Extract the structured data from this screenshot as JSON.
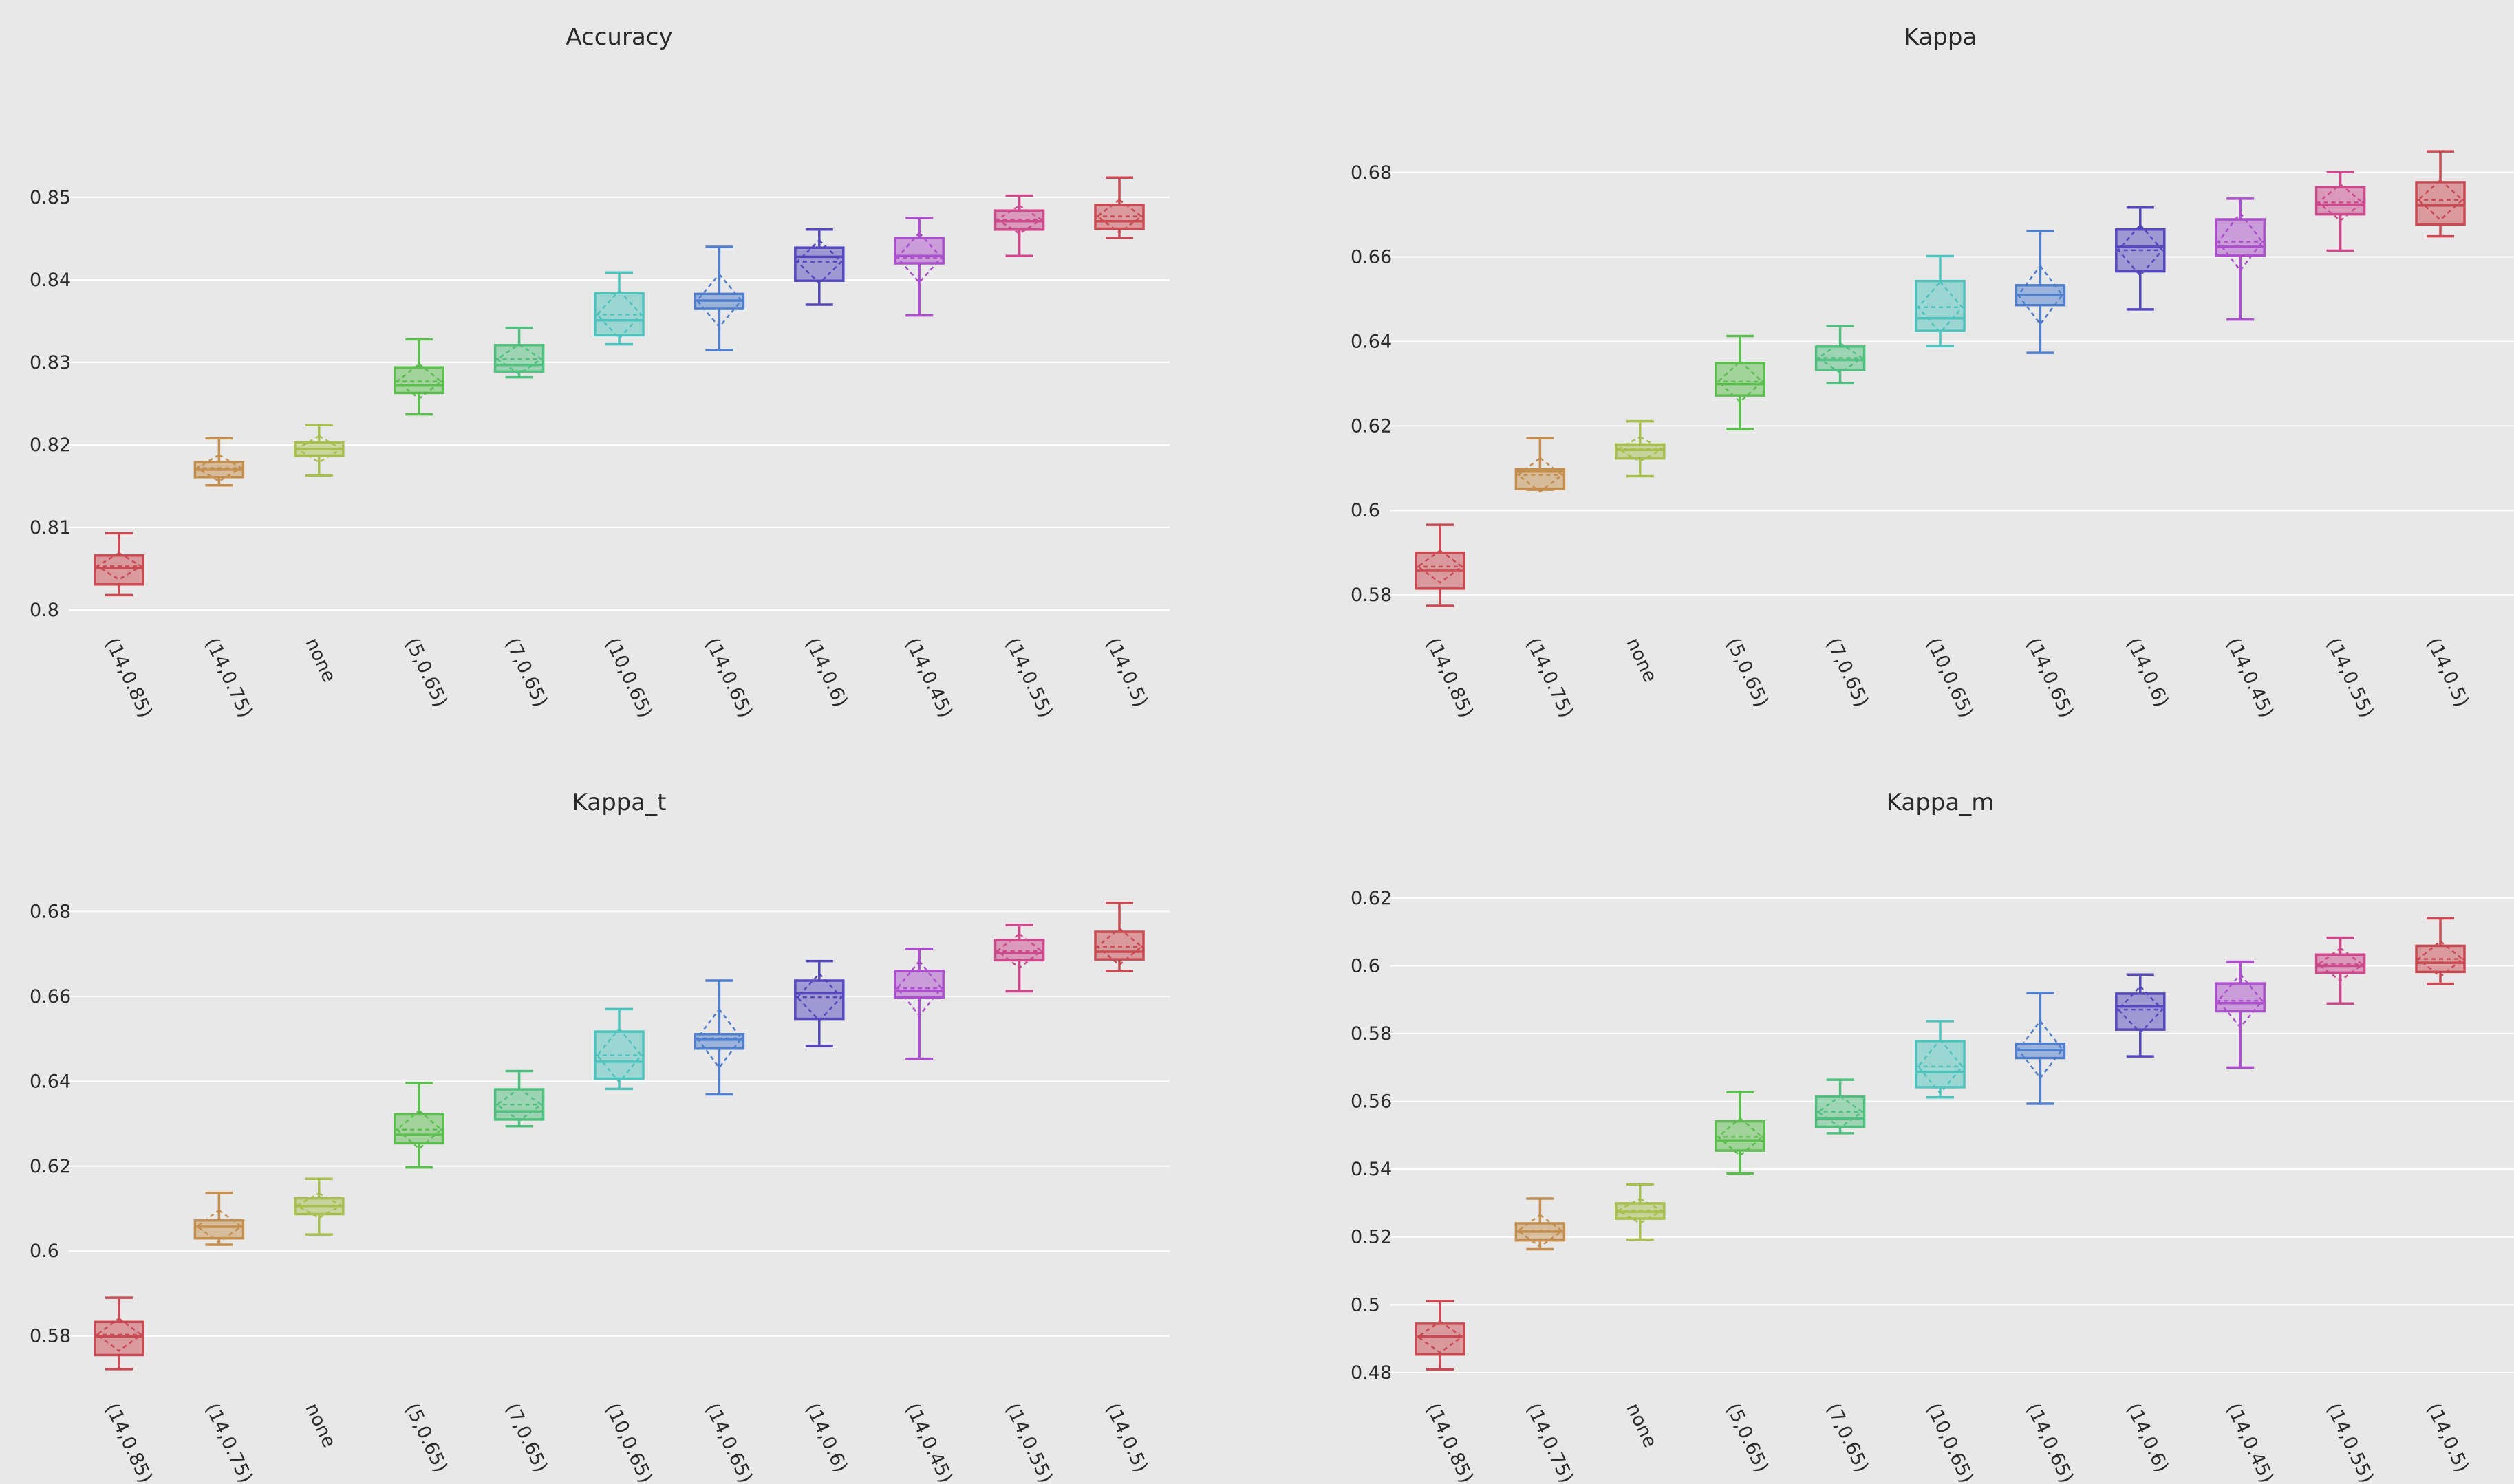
{
  "chart_data": [
    {
      "type": "box",
      "title": "Accuracy",
      "categories": [
        "(14,0.85)",
        "(14,0.75)",
        "none",
        "(5,0.65)",
        "(7,0.65)",
        "(10,0.65)",
        "(14,0.65)",
        "(14,0.6)",
        "(14,0.45)",
        "(14,0.55)",
        "(14,0.5)"
      ],
      "yticks": [
        0.8,
        0.81,
        0.82,
        0.83,
        0.84,
        0.85
      ],
      "ytick_labels": [
        "0.8",
        "0.81",
        "0.82",
        "0.83",
        "0.84",
        "0.85"
      ],
      "ylim": [
        0.7985,
        0.861
      ],
      "boxes": [
        {
          "min": 0.8018,
          "q1": 0.8031,
          "median": 0.8051,
          "q3": 0.8066,
          "max": 0.8093,
          "mean": 0.8053,
          "sd": 0.0016
        },
        {
          "min": 0.8151,
          "q1": 0.8161,
          "median": 0.817,
          "q3": 0.8179,
          "max": 0.8208,
          "mean": 0.8172,
          "sd": 0.0016
        },
        {
          "min": 0.8163,
          "q1": 0.8187,
          "median": 0.8195,
          "q3": 0.8203,
          "max": 0.8224,
          "mean": 0.8195,
          "sd": 0.0016
        },
        {
          "min": 0.8237,
          "q1": 0.8263,
          "median": 0.8272,
          "q3": 0.8294,
          "max": 0.8328,
          "mean": 0.8277,
          "sd": 0.0021
        },
        {
          "min": 0.8282,
          "q1": 0.8289,
          "median": 0.8297,
          "q3": 0.8321,
          "max": 0.8342,
          "mean": 0.8304,
          "sd": 0.0018
        },
        {
          "min": 0.8322,
          "q1": 0.8333,
          "median": 0.8351,
          "q3": 0.8384,
          "max": 0.8409,
          "mean": 0.8358,
          "sd": 0.0029
        },
        {
          "min": 0.8315,
          "q1": 0.8365,
          "median": 0.8375,
          "q3": 0.8383,
          "max": 0.844,
          "mean": 0.8375,
          "sd": 0.0032
        },
        {
          "min": 0.837,
          "q1": 0.8399,
          "median": 0.8428,
          "q3": 0.8439,
          "max": 0.8461,
          "mean": 0.8422,
          "sd": 0.0026
        },
        {
          "min": 0.8357,
          "q1": 0.842,
          "median": 0.8429,
          "q3": 0.8451,
          "max": 0.8475,
          "mean": 0.8427,
          "sd": 0.003
        },
        {
          "min": 0.8429,
          "q1": 0.8461,
          "median": 0.8471,
          "q3": 0.8484,
          "max": 0.8502,
          "mean": 0.8473,
          "sd": 0.0017
        },
        {
          "min": 0.8451,
          "q1": 0.8462,
          "median": 0.8471,
          "q3": 0.8491,
          "max": 0.8524,
          "mean": 0.8477,
          "sd": 0.002
        }
      ]
    },
    {
      "type": "box",
      "title": "Kappa",
      "categories": [
        "(14,0.85)",
        "(14,0.75)",
        "none",
        "(5,0.65)",
        "(7,0.65)",
        "(10,0.65)",
        "(14,0.65)",
        "(14,0.6)",
        "(14,0.45)",
        "(14,0.55)",
        "(14,0.5)"
      ],
      "yticks": [
        0.58,
        0.6,
        0.62,
        0.64,
        0.66,
        0.68
      ],
      "ytick_labels": [
        "0.58",
        "0.6",
        "0.62",
        "0.64",
        "0.66",
        "0.68"
      ],
      "ylim": [
        0.5735,
        0.6956
      ],
      "boxes": [
        {
          "min": 0.5774,
          "q1": 0.5815,
          "median": 0.5857,
          "q3": 0.59,
          "max": 0.5966,
          "mean": 0.5867,
          "sd": 0.0038
        },
        {
          "min": 0.6049,
          "q1": 0.6051,
          "median": 0.6092,
          "q3": 0.6098,
          "max": 0.6171,
          "mean": 0.6084,
          "sd": 0.004
        },
        {
          "min": 0.6081,
          "q1": 0.6123,
          "median": 0.6143,
          "q3": 0.6156,
          "max": 0.6211,
          "mean": 0.6145,
          "sd": 0.0029
        },
        {
          "min": 0.6192,
          "q1": 0.6272,
          "median": 0.6299,
          "q3": 0.6349,
          "max": 0.6413,
          "mean": 0.6305,
          "sd": 0.0048
        },
        {
          "min": 0.6301,
          "q1": 0.6333,
          "median": 0.6356,
          "q3": 0.6388,
          "max": 0.6437,
          "mean": 0.6361,
          "sd": 0.0035
        },
        {
          "min": 0.6389,
          "q1": 0.6425,
          "median": 0.6455,
          "q3": 0.6543,
          "max": 0.6602,
          "mean": 0.6481,
          "sd": 0.006
        },
        {
          "min": 0.6373,
          "q1": 0.6486,
          "median": 0.651,
          "q3": 0.6533,
          "max": 0.6661,
          "mean": 0.651,
          "sd": 0.0069
        },
        {
          "min": 0.6476,
          "q1": 0.6566,
          "median": 0.6624,
          "q3": 0.6665,
          "max": 0.6717,
          "mean": 0.6616,
          "sd": 0.006
        },
        {
          "min": 0.6452,
          "q1": 0.6603,
          "median": 0.6624,
          "q3": 0.6689,
          "max": 0.6738,
          "mean": 0.6636,
          "sd": 0.0068
        },
        {
          "min": 0.6615,
          "q1": 0.6701,
          "median": 0.6723,
          "q3": 0.6765,
          "max": 0.6801,
          "mean": 0.6729,
          "sd": 0.0043
        },
        {
          "min": 0.6649,
          "q1": 0.6677,
          "median": 0.6722,
          "q3": 0.6777,
          "max": 0.685,
          "mean": 0.6735,
          "sd": 0.0047
        }
      ]
    },
    {
      "type": "box",
      "title": "Kappa_t",
      "categories": [
        "(14,0.85)",
        "(14,0.75)",
        "none",
        "(5,0.65)",
        "(7,0.65)",
        "(10,0.65)",
        "(14,0.65)",
        "(14,0.6)",
        "(14,0.45)",
        "(14,0.55)",
        "(14,0.5)"
      ],
      "yticks": [
        0.58,
        0.6,
        0.62,
        0.64,
        0.66,
        0.68
      ],
      "ytick_labels": [
        "0.58",
        "0.6",
        "0.62",
        "0.64",
        "0.66",
        "0.68"
      ],
      "ylim": [
        0.5678,
        0.6893
      ],
      "boxes": [
        {
          "min": 0.5722,
          "q1": 0.5755,
          "median": 0.5799,
          "q3": 0.5833,
          "max": 0.589,
          "mean": 0.5803,
          "sd": 0.0038
        },
        {
          "min": 0.6015,
          "q1": 0.603,
          "median": 0.6057,
          "q3": 0.6072,
          "max": 0.6137,
          "mean": 0.6058,
          "sd": 0.0038
        },
        {
          "min": 0.6039,
          "q1": 0.6087,
          "median": 0.6106,
          "q3": 0.6124,
          "max": 0.617,
          "mean": 0.6107,
          "sd": 0.0029
        },
        {
          "min": 0.6197,
          "q1": 0.6254,
          "median": 0.6274,
          "q3": 0.6322,
          "max": 0.6396,
          "mean": 0.6286,
          "sd": 0.0045
        },
        {
          "min": 0.6294,
          "q1": 0.631,
          "median": 0.6329,
          "q3": 0.6381,
          "max": 0.6424,
          "mean": 0.6345,
          "sd": 0.0038
        },
        {
          "min": 0.6382,
          "q1": 0.6406,
          "median": 0.6446,
          "q3": 0.6517,
          "max": 0.657,
          "mean": 0.6461,
          "sd": 0.0063
        },
        {
          "min": 0.6369,
          "q1": 0.6477,
          "median": 0.6498,
          "q3": 0.6511,
          "max": 0.6637,
          "mean": 0.6501,
          "sd": 0.0069
        },
        {
          "min": 0.6483,
          "q1": 0.6547,
          "median": 0.6607,
          "q3": 0.6637,
          "max": 0.6683,
          "mean": 0.6598,
          "sd": 0.0055
        },
        {
          "min": 0.6453,
          "q1": 0.6597,
          "median": 0.6613,
          "q3": 0.666,
          "max": 0.6712,
          "mean": 0.6619,
          "sd": 0.0064
        },
        {
          "min": 0.6612,
          "q1": 0.6685,
          "median": 0.6702,
          "q3": 0.6733,
          "max": 0.6768,
          "mean": 0.6707,
          "sd": 0.004
        },
        {
          "min": 0.666,
          "q1": 0.6687,
          "median": 0.6705,
          "q3": 0.6752,
          "max": 0.682,
          "mean": 0.6717,
          "sd": 0.0043
        }
      ]
    },
    {
      "type": "box",
      "title": "Kappa_m",
      "categories": [
        "(14,0.85)",
        "(14,0.75)",
        "none",
        "(5,0.65)",
        "(7,0.65)",
        "(10,0.65)",
        "(14,0.65)",
        "(14,0.6)",
        "(14,0.45)",
        "(14,0.55)",
        "(14,0.5)"
      ],
      "yticks": [
        0.48,
        0.5,
        0.52,
        0.54,
        0.56,
        0.58,
        0.6,
        0.62
      ],
      "ytick_labels": [
        "0.48",
        "0.5",
        "0.52",
        "0.54",
        "0.56",
        "0.58",
        "0.6",
        "0.62"
      ],
      "ylim": [
        0.4755,
        0.6277
      ],
      "boxes": [
        {
          "min": 0.4809,
          "q1": 0.4853,
          "median": 0.4906,
          "q3": 0.4944,
          "max": 0.5011,
          "mean": 0.4905,
          "sd": 0.0046
        },
        {
          "min": 0.5164,
          "q1": 0.519,
          "median": 0.5216,
          "q3": 0.524,
          "max": 0.5313,
          "mean": 0.5218,
          "sd": 0.0047
        },
        {
          "min": 0.5192,
          "q1": 0.5254,
          "median": 0.5274,
          "q3": 0.5299,
          "max": 0.5355,
          "mean": 0.5277,
          "sd": 0.0036
        },
        {
          "min": 0.5387,
          "q1": 0.5455,
          "median": 0.5483,
          "q3": 0.5541,
          "max": 0.5627,
          "mean": 0.5495,
          "sd": 0.0055
        },
        {
          "min": 0.5506,
          "q1": 0.5525,
          "median": 0.555,
          "q3": 0.5614,
          "max": 0.5664,
          "mean": 0.5569,
          "sd": 0.0046
        },
        {
          "min": 0.5612,
          "q1": 0.5642,
          "median": 0.5687,
          "q3": 0.5778,
          "max": 0.5837,
          "mean": 0.5703,
          "sd": 0.0079
        },
        {
          "min": 0.5593,
          "q1": 0.5728,
          "median": 0.5752,
          "q3": 0.577,
          "max": 0.592,
          "mean": 0.5753,
          "sd": 0.0084
        },
        {
          "min": 0.5733,
          "q1": 0.5812,
          "median": 0.588,
          "q3": 0.5918,
          "max": 0.5974,
          "mean": 0.5871,
          "sd": 0.0068
        },
        {
          "min": 0.57,
          "q1": 0.5866,
          "median": 0.589,
          "q3": 0.5948,
          "max": 0.6012,
          "mean": 0.5897,
          "sd": 0.0078
        },
        {
          "min": 0.5889,
          "q1": 0.598,
          "median": 0.6,
          "q3": 0.6033,
          "max": 0.6083,
          "mean": 0.6004,
          "sd": 0.0048
        },
        {
          "min": 0.5947,
          "q1": 0.5982,
          "median": 0.6009,
          "q3": 0.6059,
          "max": 0.614,
          "mean": 0.602,
          "sd": 0.0052
        }
      ]
    }
  ],
  "colors": [
    "#c94a52",
    "#c48f4e",
    "#a8bf4f",
    "#5cbe4e",
    "#51c07f",
    "#4ec3bd",
    "#4f7fcd",
    "#5547be",
    "#ab4fcc",
    "#cc4a8c",
    "#c94a52"
  ]
}
